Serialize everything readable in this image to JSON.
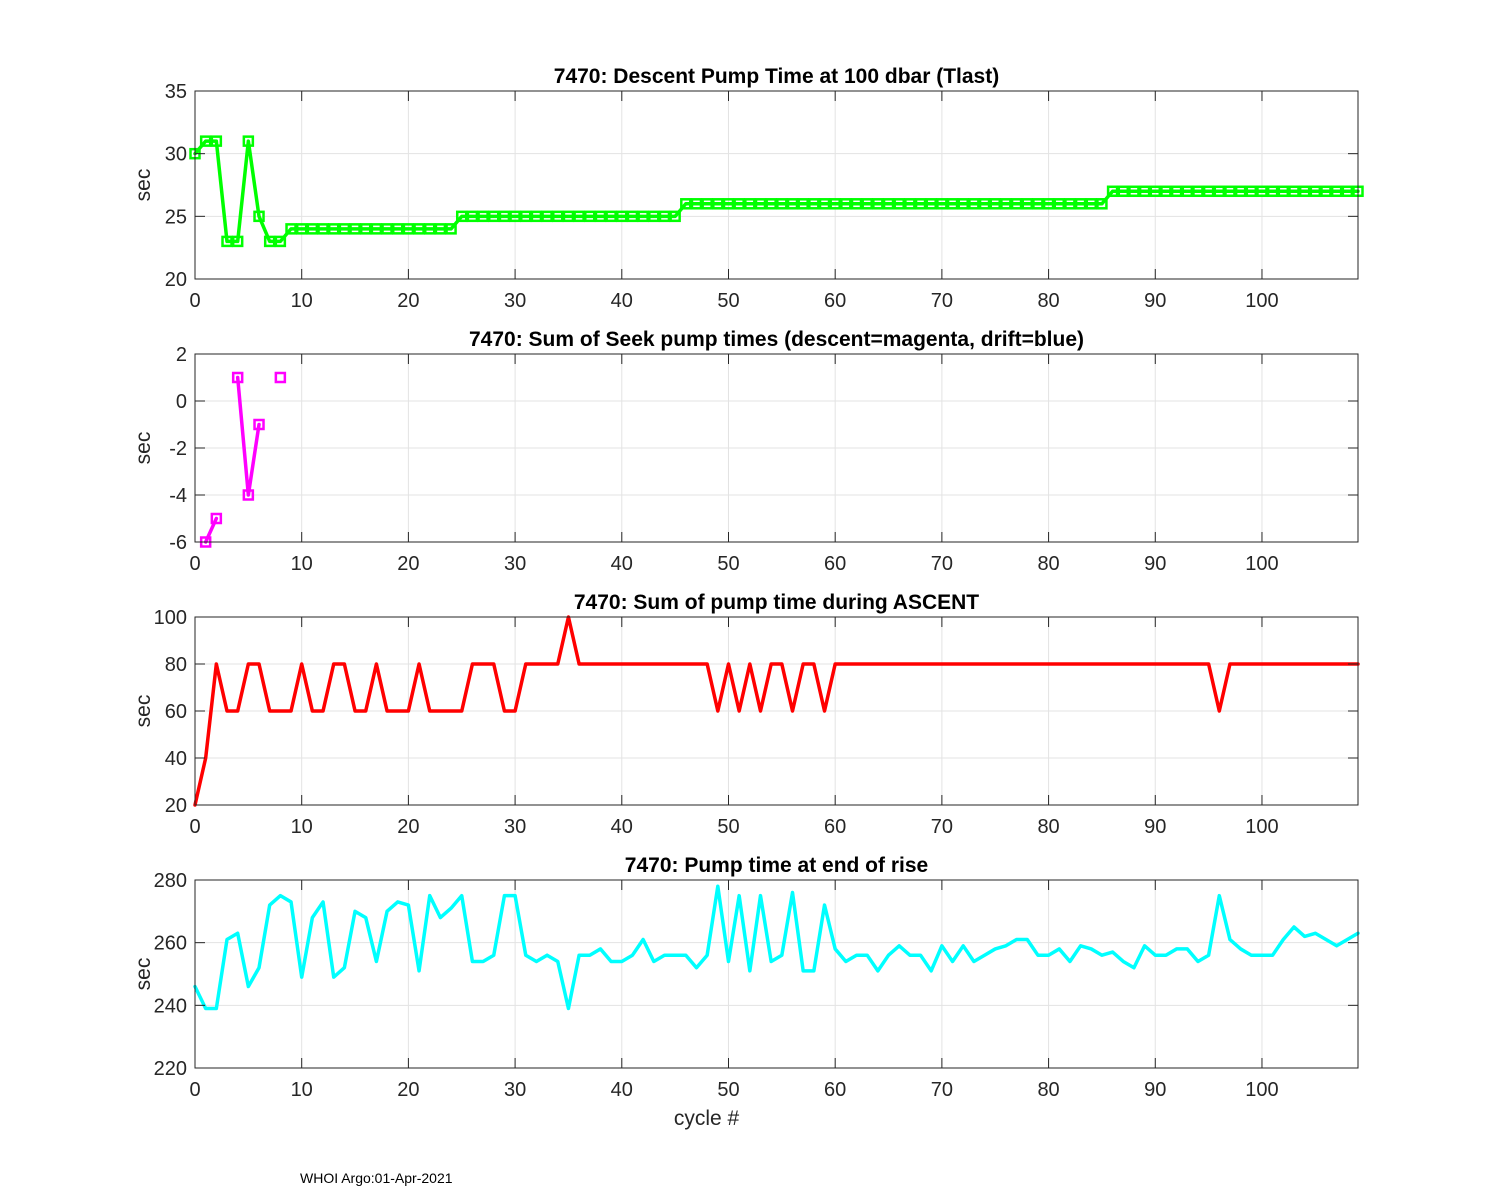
{
  "footer": "WHOI Argo:01-Apr-2021",
  "chart_data": [
    {
      "type": "line",
      "title": "7470: Descent Pump Time at 100 dbar (Tlast)",
      "xlabel": "",
      "ylabel": "sec",
      "xlim": [
        0,
        109
      ],
      "ylim": [
        20,
        35
      ],
      "xticks": [
        0,
        10,
        20,
        30,
        40,
        50,
        60,
        70,
        80,
        90,
        100
      ],
      "yticks": [
        20,
        25,
        30,
        35
      ],
      "grid": true,
      "color": "#00ff00",
      "markers": "square",
      "series": [
        {
          "x": [
            0,
            1,
            2,
            3,
            4,
            5,
            6,
            7,
            8,
            9,
            10,
            11,
            12,
            13,
            14,
            15,
            16,
            17,
            18,
            19,
            20,
            21,
            22,
            23,
            24,
            25,
            26,
            27,
            28,
            29,
            30,
            31,
            32,
            33,
            34,
            35,
            36,
            37,
            38,
            39,
            40,
            41,
            42,
            43,
            44,
            45,
            46,
            47,
            48,
            49,
            50,
            51,
            52,
            53,
            54,
            55,
            56,
            57,
            58,
            59,
            60,
            61,
            62,
            63,
            64,
            65,
            66,
            67,
            68,
            69,
            70,
            71,
            72,
            73,
            74,
            75,
            76,
            77,
            78,
            79,
            80,
            81,
            82,
            83,
            84,
            85,
            86,
            87,
            88,
            89,
            90,
            91,
            92,
            93,
            94,
            95,
            96,
            97,
            98,
            99,
            100,
            101,
            102,
            103,
            104,
            105,
            106,
            107,
            108,
            109
          ],
          "values": [
            30,
            31,
            31,
            23,
            23,
            31,
            25,
            23,
            23,
            24,
            24,
            24,
            24,
            24,
            24,
            24,
            24,
            24,
            24,
            24,
            24,
            24,
            24,
            24,
            24,
            25,
            25,
            25,
            25,
            25,
            25,
            25,
            25,
            25,
            25,
            25,
            25,
            25,
            25,
            25,
            25,
            25,
            25,
            25,
            25,
            25,
            26,
            26,
            26,
            26,
            26,
            26,
            26,
            26,
            26,
            26,
            26,
            26,
            26,
            26,
            26,
            26,
            26,
            26,
            26,
            26,
            26,
            26,
            26,
            26,
            26,
            26,
            26,
            26,
            26,
            26,
            26,
            26,
            26,
            26,
            26,
            26,
            26,
            26,
            26,
            26,
            27,
            27,
            27,
            27,
            27,
            27,
            27,
            27,
            27,
            27,
            27,
            27,
            27,
            27,
            27,
            27,
            27,
            27,
            27,
            27,
            27,
            27,
            27,
            27
          ]
        }
      ]
    },
    {
      "type": "line",
      "title": "7470: Sum of Seek pump times (descent=magenta, drift=blue)",
      "xlabel": "",
      "ylabel": "sec",
      "xlim": [
        0,
        109
      ],
      "ylim": [
        -6,
        2
      ],
      "xticks": [
        0,
        10,
        20,
        30,
        40,
        50,
        60,
        70,
        80,
        90,
        100
      ],
      "yticks": [
        -6,
        -4,
        -2,
        0,
        2
      ],
      "grid": true,
      "color": "#ff00ff",
      "markers": "square",
      "series": [
        {
          "x": [
            1,
            2
          ],
          "values": [
            -6,
            -5
          ]
        },
        {
          "x": [
            4,
            5,
            6
          ],
          "values": [
            1,
            -4,
            -1
          ]
        },
        {
          "x": [
            8
          ],
          "values": [
            1
          ]
        }
      ]
    },
    {
      "type": "line",
      "title": "7470: Sum of pump time during ASCENT",
      "xlabel": "",
      "ylabel": "sec",
      "xlim": [
        0,
        109
      ],
      "ylim": [
        20,
        100
      ],
      "xticks": [
        0,
        10,
        20,
        30,
        40,
        50,
        60,
        70,
        80,
        90,
        100
      ],
      "yticks": [
        20,
        40,
        60,
        80,
        100
      ],
      "grid": true,
      "color": "#ff0000",
      "markers": "none",
      "series": [
        {
          "x": [
            0,
            1,
            2,
            3,
            4,
            5,
            6,
            7,
            8,
            9,
            10,
            11,
            12,
            13,
            14,
            15,
            16,
            17,
            18,
            19,
            20,
            21,
            22,
            23,
            24,
            25,
            26,
            27,
            28,
            29,
            30,
            31,
            32,
            33,
            34,
            35,
            36,
            37,
            38,
            39,
            40,
            41,
            42,
            43,
            44,
            45,
            46,
            47,
            48,
            49,
            50,
            51,
            52,
            53,
            54,
            55,
            56,
            57,
            58,
            59,
            60,
            61,
            62,
            63,
            64,
            65,
            66,
            67,
            68,
            69,
            70,
            71,
            72,
            73,
            74,
            75,
            76,
            77,
            78,
            79,
            80,
            81,
            82,
            83,
            84,
            85,
            86,
            87,
            88,
            89,
            90,
            91,
            92,
            93,
            94,
            95,
            96,
            97,
            98,
            99,
            100,
            101,
            102,
            103,
            104,
            105,
            106,
            107,
            108,
            109
          ],
          "values": [
            20,
            40,
            80,
            60,
            60,
            80,
            80,
            60,
            60,
            60,
            80,
            60,
            60,
            80,
            80,
            60,
            60,
            80,
            60,
            60,
            60,
            80,
            60,
            60,
            60,
            60,
            80,
            80,
            80,
            60,
            60,
            80,
            80,
            80,
            80,
            100,
            80,
            80,
            80,
            80,
            80,
            80,
            80,
            80,
            80,
            80,
            80,
            80,
            80,
            60,
            80,
            60,
            80,
            60,
            80,
            80,
            60,
            80,
            80,
            60,
            80,
            80,
            80,
            80,
            80,
            80,
            80,
            80,
            80,
            80,
            80,
            80,
            80,
            80,
            80,
            80,
            80,
            80,
            80,
            80,
            80,
            80,
            80,
            80,
            80,
            80,
            80,
            80,
            80,
            80,
            80,
            80,
            80,
            80,
            80,
            80,
            60,
            80,
            80,
            80,
            80,
            80,
            80,
            80,
            80,
            80,
            80,
            80,
            80,
            80
          ]
        }
      ]
    },
    {
      "type": "line",
      "title": "7470: Pump time at end of rise",
      "xlabel": "cycle #",
      "ylabel": "sec",
      "xlim": [
        0,
        109
      ],
      "ylim": [
        220,
        280
      ],
      "xticks": [
        0,
        10,
        20,
        30,
        40,
        50,
        60,
        70,
        80,
        90,
        100
      ],
      "yticks": [
        220,
        240,
        260,
        280
      ],
      "grid": true,
      "color": "#00ffff",
      "markers": "none",
      "series": [
        {
          "x": [
            0,
            1,
            2,
            3,
            4,
            5,
            6,
            7,
            8,
            9,
            10,
            11,
            12,
            13,
            14,
            15,
            16,
            17,
            18,
            19,
            20,
            21,
            22,
            23,
            24,
            25,
            26,
            27,
            28,
            29,
            30,
            31,
            32,
            33,
            34,
            35,
            36,
            37,
            38,
            39,
            40,
            41,
            42,
            43,
            44,
            45,
            46,
            47,
            48,
            49,
            50,
            51,
            52,
            53,
            54,
            55,
            56,
            57,
            58,
            59,
            60,
            61,
            62,
            63,
            64,
            65,
            66,
            67,
            68,
            69,
            70,
            71,
            72,
            73,
            74,
            75,
            76,
            77,
            78,
            79,
            80,
            81,
            82,
            83,
            84,
            85,
            86,
            87,
            88,
            89,
            90,
            91,
            92,
            93,
            94,
            95,
            96,
            97,
            98,
            99,
            100,
            101,
            102,
            103,
            104,
            105,
            106,
            107,
            108,
            109
          ],
          "values": [
            246,
            239,
            239,
            261,
            263,
            246,
            252,
            272,
            275,
            273,
            249,
            268,
            273,
            249,
            252,
            270,
            268,
            254,
            270,
            273,
            272,
            251,
            275,
            268,
            271,
            275,
            254,
            254,
            256,
            275,
            275,
            256,
            254,
            256,
            254,
            239,
            256,
            256,
            258,
            254,
            254,
            256,
            261,
            254,
            256,
            256,
            256,
            252,
            256,
            278,
            254,
            275,
            251,
            275,
            254,
            256,
            276,
            251,
            251,
            272,
            258,
            254,
            256,
            256,
            251,
            256,
            259,
            256,
            256,
            251,
            259,
            254,
            259,
            254,
            256,
            258,
            259,
            261,
            261,
            256,
            256,
            258,
            254,
            259,
            258,
            256,
            257,
            254,
            252,
            259,
            256,
            256,
            258,
            258,
            254,
            256,
            275,
            261,
            258,
            256,
            256,
            256,
            261,
            265,
            262,
            263,
            261,
            259,
            261,
            263
          ]
        }
      ]
    }
  ]
}
